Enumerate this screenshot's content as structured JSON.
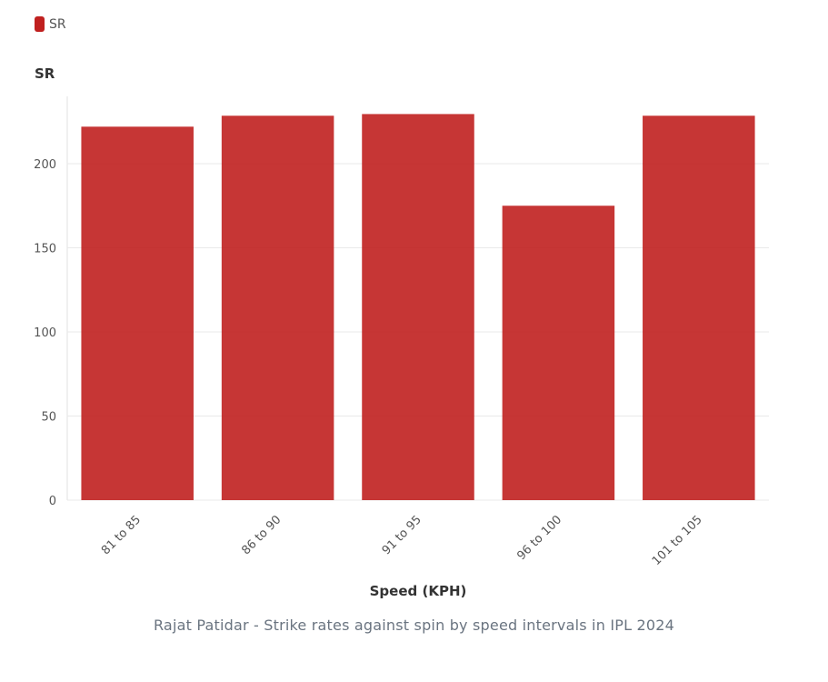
{
  "legend": {
    "label": "SR",
    "color": "#c0201f"
  },
  "caption": "Rajat Patidar - Strike rates against spin by speed intervals in IPL 2024",
  "chart_data": {
    "type": "bar",
    "title": "",
    "xlabel": "Speed (KPH)",
    "ylabel": "SR",
    "categories": [
      "81 to 85",
      "86 to 90",
      "91 to 95",
      "96 to 100",
      "101 to 105"
    ],
    "series": [
      {
        "name": "SR",
        "values": [
          222,
          228.5,
          229.5,
          175,
          228.5
        ]
      }
    ],
    "ylim": [
      0,
      240
    ],
    "yticks": [
      0,
      50,
      100,
      150,
      200
    ],
    "grid": true,
    "legend_position": "top-left",
    "bar_color": "#c0201f"
  }
}
